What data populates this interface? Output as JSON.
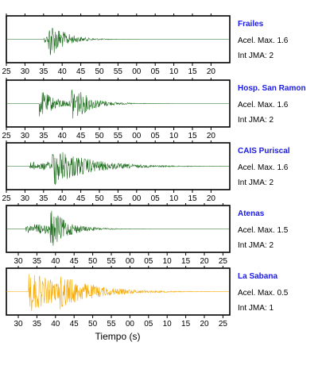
{
  "chart_data": {
    "type": "line",
    "xlabel": "Tiempo (s)",
    "colors": {
      "station_name": "#1a1ae6",
      "trace_default": "#1a6b1a",
      "trace_highlight": "#f5a800"
    },
    "series": [
      {
        "name": "Frailes",
        "acel_label": "Acel. Max. 1.6",
        "int_label": "Int JMA: 2",
        "color": "#1a6b1a",
        "ticks": [
          "25",
          "30",
          "35",
          "40",
          "45",
          "50",
          "55",
          "00",
          "05",
          "10",
          "15",
          "20"
        ],
        "onset_tick": 35.2,
        "peak_tick": 36.3,
        "pre_amp": 0.2,
        "peak_amp": 1.0,
        "decay": 4.0,
        "secondary_tick": null,
        "secondary_amp": 0
      },
      {
        "name": "Hosp. San Ramon",
        "acel_label": "Acel. Max. 1.6",
        "int_label": "Int JMA: 2",
        "color": "#1a6b1a",
        "ticks": [
          "25",
          "30",
          "35",
          "40",
          "45",
          "50",
          "55",
          "00",
          "05",
          "10",
          "15",
          "20"
        ],
        "onset_tick": 33.8,
        "peak_tick": 33.9,
        "pre_amp": 0.0,
        "peak_amp": 0.65,
        "decay": 5.0,
        "secondary_tick": 42.5,
        "secondary_amp": 0.95
      },
      {
        "name": "CAIS Puriscal",
        "acel_label": "Acel. Max. 1.6",
        "int_label": "Int JMA: 2",
        "color": "#1a6b1a",
        "ticks": [
          "25",
          "30",
          "35",
          "40",
          "45",
          "50",
          "55",
          "00",
          "05",
          "10",
          "15",
          "20"
        ],
        "onset_tick": 31.3,
        "peak_tick": 37.3,
        "pre_amp": 0.25,
        "peak_amp": 1.0,
        "decay": 9.0,
        "secondary_tick": null,
        "secondary_amp": 0
      },
      {
        "name": "Atenas",
        "acel_label": "Acel. Max. 1.5",
        "int_label": "Int JMA: 2",
        "color": "#1a6b1a",
        "ticks": [
          "30",
          "35",
          "40",
          "45",
          "50",
          "55",
          "00",
          "05",
          "10",
          "15",
          "20",
          "25"
        ],
        "onset_tick": 32.0,
        "peak_tick": 38.6,
        "pre_amp": 0.25,
        "peak_amp": 1.0,
        "decay": 4.5,
        "secondary_tick": null,
        "secondary_amp": 0
      },
      {
        "name": "La Sabana",
        "acel_label": "Acel. Max. 0.5",
        "int_label": "Int JMA: 1",
        "color": "#f5a800",
        "ticks": [
          "30",
          "35",
          "40",
          "45",
          "50",
          "55",
          "00",
          "05",
          "10",
          "15",
          "20",
          "25"
        ],
        "onset_tick": 32.3,
        "peak_tick": 32.8,
        "pre_amp": 0.0,
        "peak_amp": 1.0,
        "decay": 10.0,
        "secondary_tick": 41.0,
        "secondary_amp": 0.85
      }
    ]
  }
}
